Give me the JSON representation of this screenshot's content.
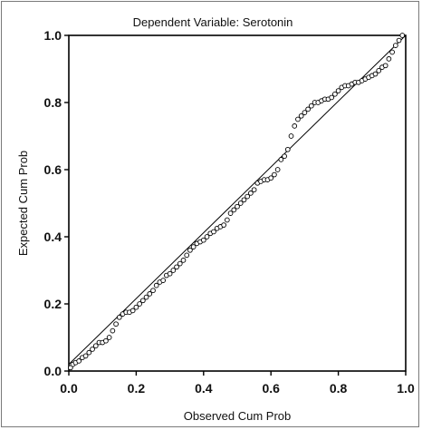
{
  "chart_data": {
    "type": "scatter",
    "title": "Dependent Variable: Serotonin",
    "xlabel": "Observed Cum Prob",
    "ylabel": "Expected Cum Prob",
    "xlim": [
      0.0,
      1.0
    ],
    "ylim": [
      0.0,
      1.0
    ],
    "xticks": [
      "0.0",
      "0.2",
      "0.4",
      "0.6",
      "0.8",
      "1.0"
    ],
    "yticks": [
      "0.0",
      "0.2",
      "0.4",
      "0.6",
      "0.8",
      "1.0"
    ],
    "reference_line": [
      [
        0.0,
        0.02
      ],
      [
        1.0,
        1.0
      ]
    ],
    "grid": false,
    "series": [
      {
        "points": [
          [
            0.005,
            0.01
          ],
          [
            0.012,
            0.02
          ],
          [
            0.02,
            0.025
          ],
          [
            0.03,
            0.03
          ],
          [
            0.04,
            0.04
          ],
          [
            0.05,
            0.045
          ],
          [
            0.06,
            0.055
          ],
          [
            0.07,
            0.065
          ],
          [
            0.08,
            0.075
          ],
          [
            0.09,
            0.085
          ],
          [
            0.1,
            0.085
          ],
          [
            0.11,
            0.09
          ],
          [
            0.12,
            0.1
          ],
          [
            0.13,
            0.12
          ],
          [
            0.14,
            0.14
          ],
          [
            0.15,
            0.16
          ],
          [
            0.16,
            0.17
          ],
          [
            0.17,
            0.175
          ],
          [
            0.18,
            0.175
          ],
          [
            0.19,
            0.18
          ],
          [
            0.2,
            0.19
          ],
          [
            0.21,
            0.2
          ],
          [
            0.22,
            0.21
          ],
          [
            0.23,
            0.22
          ],
          [
            0.24,
            0.23
          ],
          [
            0.25,
            0.24
          ],
          [
            0.26,
            0.255
          ],
          [
            0.27,
            0.265
          ],
          [
            0.28,
            0.27
          ],
          [
            0.29,
            0.285
          ],
          [
            0.3,
            0.29
          ],
          [
            0.31,
            0.3
          ],
          [
            0.32,
            0.31
          ],
          [
            0.33,
            0.32
          ],
          [
            0.34,
            0.33
          ],
          [
            0.35,
            0.345
          ],
          [
            0.36,
            0.36
          ],
          [
            0.37,
            0.37
          ],
          [
            0.38,
            0.38
          ],
          [
            0.39,
            0.385
          ],
          [
            0.4,
            0.39
          ],
          [
            0.41,
            0.4
          ],
          [
            0.42,
            0.41
          ],
          [
            0.43,
            0.415
          ],
          [
            0.44,
            0.425
          ],
          [
            0.45,
            0.43
          ],
          [
            0.46,
            0.435
          ],
          [
            0.47,
            0.45
          ],
          [
            0.48,
            0.47
          ],
          [
            0.49,
            0.48
          ],
          [
            0.5,
            0.49
          ],
          [
            0.51,
            0.5
          ],
          [
            0.52,
            0.51
          ],
          [
            0.53,
            0.52
          ],
          [
            0.54,
            0.53
          ],
          [
            0.55,
            0.54
          ],
          [
            0.56,
            0.56
          ],
          [
            0.57,
            0.565
          ],
          [
            0.58,
            0.57
          ],
          [
            0.59,
            0.57
          ],
          [
            0.6,
            0.575
          ],
          [
            0.61,
            0.585
          ],
          [
            0.62,
            0.6
          ],
          [
            0.63,
            0.63
          ],
          [
            0.64,
            0.64
          ],
          [
            0.65,
            0.66
          ],
          [
            0.66,
            0.7
          ],
          [
            0.67,
            0.73
          ],
          [
            0.68,
            0.75
          ],
          [
            0.69,
            0.76
          ],
          [
            0.7,
            0.77
          ],
          [
            0.71,
            0.78
          ],
          [
            0.72,
            0.79
          ],
          [
            0.73,
            0.8
          ],
          [
            0.74,
            0.8
          ],
          [
            0.75,
            0.805
          ],
          [
            0.76,
            0.81
          ],
          [
            0.77,
            0.81
          ],
          [
            0.78,
            0.815
          ],
          [
            0.79,
            0.825
          ],
          [
            0.8,
            0.835
          ],
          [
            0.81,
            0.845
          ],
          [
            0.82,
            0.85
          ],
          [
            0.83,
            0.85
          ],
          [
            0.84,
            0.855
          ],
          [
            0.85,
            0.86
          ],
          [
            0.86,
            0.86
          ],
          [
            0.87,
            0.865
          ],
          [
            0.88,
            0.87
          ],
          [
            0.89,
            0.875
          ],
          [
            0.9,
            0.88
          ],
          [
            0.91,
            0.885
          ],
          [
            0.92,
            0.895
          ],
          [
            0.93,
            0.905
          ],
          [
            0.94,
            0.91
          ],
          [
            0.95,
            0.93
          ],
          [
            0.96,
            0.95
          ],
          [
            0.97,
            0.97
          ],
          [
            0.98,
            0.985
          ],
          [
            0.99,
            1.0
          ]
        ]
      }
    ]
  }
}
